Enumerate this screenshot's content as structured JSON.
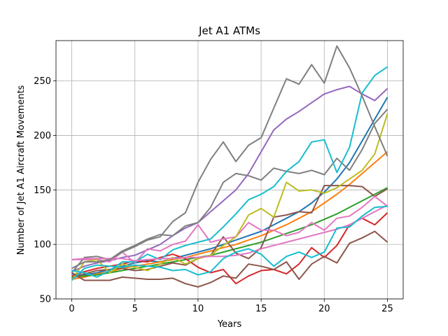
{
  "chart_data": {
    "type": "line",
    "title": "Jet A1 ATMs",
    "xlabel": "Years",
    "ylabel": "Number of Jet A1 Aircraft Movements",
    "xlim": [
      -1.25,
      26.25
    ],
    "ylim": [
      50,
      287
    ],
    "xticks": [
      0,
      5,
      10,
      15,
      20,
      25
    ],
    "yticks": [
      50,
      100,
      150,
      200,
      250
    ],
    "grid": true,
    "x": [
      0,
      1,
      2,
      3,
      4,
      5,
      6,
      7,
      8,
      9,
      10,
      11,
      12,
      13,
      14,
      15,
      16,
      17,
      18,
      19,
      20,
      21,
      22,
      23,
      24,
      25
    ],
    "series": [
      {
        "color": "#1f77b4",
        "values": [
          73,
          72,
          74,
          77,
          80,
          83,
          85,
          84,
          87,
          90,
          93,
          96,
          100,
          104,
          108,
          112,
          118,
          124,
          130,
          138,
          148,
          160,
          175,
          195,
          215,
          235
        ]
      },
      {
        "color": "#ff7f0e",
        "values": [
          68,
          70,
          73,
          75,
          78,
          80,
          82,
          84,
          86,
          88,
          91,
          94,
          97,
          100,
          104,
          108,
          113,
          118,
          124,
          130,
          138,
          146,
          155,
          165,
          175,
          185
        ]
      },
      {
        "color": "#2ca02c",
        "values": [
          70,
          71,
          72,
          74,
          76,
          78,
          80,
          82,
          84,
          86,
          88,
          90,
          93,
          96,
          99,
          102,
          106,
          110,
          114,
          118,
          123,
          128,
          134,
          140,
          146,
          152
        ]
      },
      {
        "color": "#d62728",
        "values": [
          71,
          75,
          78,
          80,
          82,
          85,
          84,
          88,
          91,
          87,
          79,
          74,
          77,
          64,
          71,
          76,
          77,
          73,
          82,
          97,
          88,
          99,
          118,
          124,
          118,
          129
        ]
      },
      {
        "color": "#9467bd",
        "values": [
          75,
          80,
          83,
          85,
          88,
          90,
          95,
          100,
          108,
          115,
          120,
          130,
          140,
          150,
          165,
          185,
          205,
          215,
          222,
          230,
          238,
          242,
          245,
          238,
          232,
          243
        ]
      },
      {
        "color": "#8c564b",
        "values": [
          69,
          73,
          76,
          77,
          78,
          76,
          77,
          80,
          83,
          81,
          87,
          90,
          107,
          92,
          87,
          97,
          125,
          127,
          130,
          129,
          154,
          154,
          154,
          153,
          144,
          151
        ]
      },
      {
        "color": "#e377c2",
        "values": [
          86,
          86,
          86,
          84,
          93,
          83,
          96,
          94,
          100,
          103,
          118,
          102,
          105,
          107,
          120,
          113,
          113,
          108,
          111,
          120,
          113,
          124,
          126,
          134,
          144,
          135
        ]
      },
      {
        "color": "#7f7f7f",
        "values": [
          74,
          88,
          89,
          86,
          94,
          99,
          105,
          109,
          108,
          117,
          120,
          134,
          157,
          165,
          163,
          159,
          170,
          167,
          165,
          168,
          164,
          179,
          168,
          187,
          211,
          224
        ]
      },
      {
        "color": "#bcbd22",
        "values": [
          67,
          84,
          86,
          74,
          82,
          79,
          76,
          82,
          88,
          82,
          87,
          90,
          99,
          107,
          127,
          133,
          125,
          157,
          149,
          150,
          147,
          152,
          160,
          168,
          183,
          220
        ]
      },
      {
        "color": "#17becf",
        "values": [
          76,
          74,
          70,
          76,
          84,
          84,
          91,
          86,
          95,
          99,
          102,
          105,
          116,
          128,
          141,
          146,
          153,
          167,
          176,
          194,
          196,
          166,
          189,
          239,
          255,
          263
        ]
      },
      {
        "color": "#e377c2",
        "values": [
          86,
          87,
          87,
          87,
          87,
          85,
          86,
          87,
          87,
          88,
          88,
          89,
          89,
          90,
          92,
          96,
          99,
          102,
          105,
          108,
          111,
          114,
          118,
          124,
          130,
          136
        ]
      },
      {
        "color": "#7f7f7f",
        "values": [
          78,
          84,
          84,
          86,
          93,
          98,
          104,
          107,
          121,
          129,
          157,
          178,
          194,
          176,
          191,
          198,
          225,
          252,
          247,
          265,
          248,
          282,
          262,
          236,
          208,
          181
        ]
      },
      {
        "color": "#8c564b",
        "values": [
          74,
          67,
          67,
          67,
          70,
          69,
          68,
          68,
          69,
          64,
          61,
          65,
          71,
          69,
          82,
          80,
          77,
          84,
          68,
          82,
          89,
          83,
          101,
          106,
          112,
          102
        ]
      },
      {
        "color": "#17becf",
        "values": [
          67,
          78,
          81,
          80,
          79,
          81,
          80,
          79,
          76,
          77,
          72,
          75,
          87,
          93,
          96,
          91,
          80,
          89,
          93,
          88,
          93,
          115,
          116,
          126,
          134,
          135
        ]
      }
    ]
  }
}
